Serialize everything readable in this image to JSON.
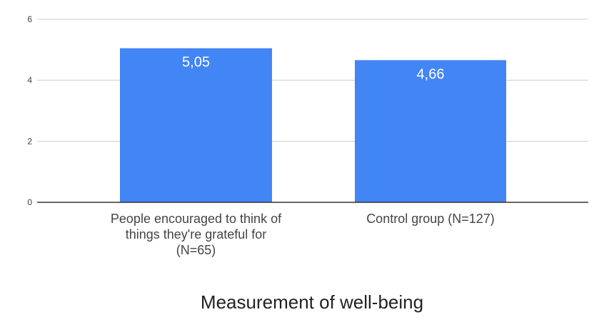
{
  "chart_data": {
    "type": "bar",
    "categories": [
      [
        "People encouraged to think of",
        "things they're grateful for",
        "(N=65)"
      ],
      [
        "Control group (N=127)"
      ]
    ],
    "values": [
      5.05,
      4.66
    ],
    "data_labels": [
      "5,05",
      "4,66"
    ],
    "title": "",
    "xlabel": "Measurement of well-being",
    "ylabel": "",
    "ylim": [
      0,
      6
    ],
    "yticks": [
      0,
      2,
      4,
      6
    ],
    "ytick_labels": [
      "0",
      "2",
      "4",
      "6"
    ],
    "grid": true,
    "legend": "none",
    "bar_color": "#4285f4",
    "grid_color": "#cccccc",
    "axis_color": "#333333"
  }
}
